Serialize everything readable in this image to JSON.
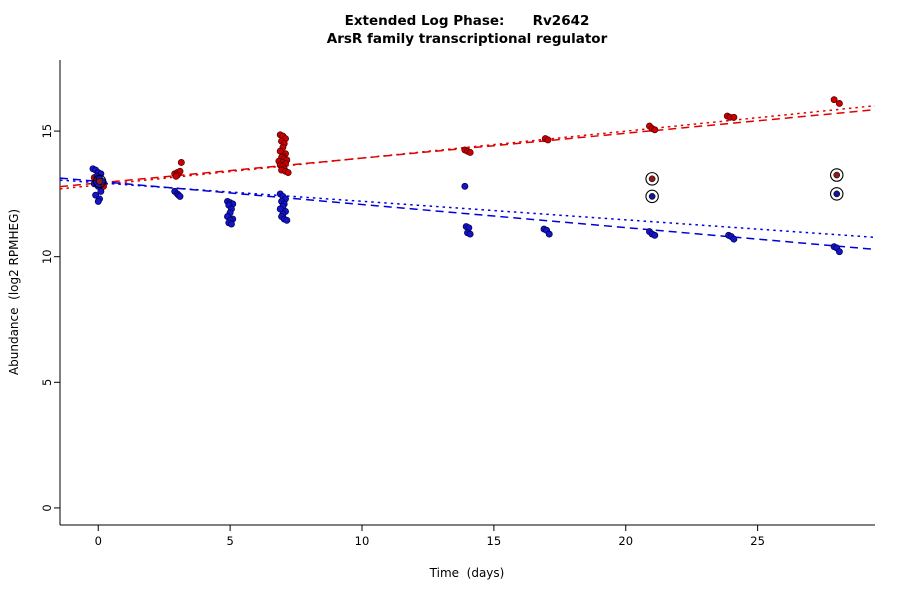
{
  "chart_data": {
    "type": "scatter",
    "title": "Extended Log Phase:      Rv2642",
    "subtitle": "ArsR family transcriptional regulator",
    "xlabel": "Time  (days)",
    "ylabel": "Abundance  (log2 RPMHEG)",
    "xlim": [
      -1.45,
      29.45
    ],
    "ylim": [
      -0.68,
      17.83
    ],
    "xticks": [
      0,
      5,
      10,
      15,
      20,
      25
    ],
    "yticks": [
      0,
      5,
      10,
      15
    ],
    "grid": false,
    "background": "#ffffff",
    "series": [
      {
        "name": "red",
        "color": "#cc0000",
        "edge": "#4d0000",
        "points": [
          [
            -0.1,
            13.05
          ],
          [
            0.0,
            13.0
          ],
          [
            0.1,
            12.95
          ],
          [
            -0.05,
            12.9
          ],
          [
            0.05,
            13.1
          ],
          [
            0.15,
            12.85
          ],
          [
            -0.15,
            13.15
          ],
          [
            0.2,
            12.8
          ],
          [
            2.9,
            13.3
          ],
          [
            3.0,
            13.35
          ],
          [
            3.1,
            13.4
          ],
          [
            3.0,
            13.25
          ],
          [
            3.15,
            13.75
          ],
          [
            2.95,
            13.2
          ],
          [
            6.9,
            14.85
          ],
          [
            7.0,
            14.8
          ],
          [
            7.1,
            14.7
          ],
          [
            6.95,
            14.6
          ],
          [
            7.05,
            14.5
          ],
          [
            7.0,
            14.35
          ],
          [
            6.9,
            14.2
          ],
          [
            7.1,
            14.1
          ],
          [
            7.0,
            14.0
          ],
          [
            6.95,
            13.95
          ],
          [
            7.05,
            13.9
          ],
          [
            7.15,
            13.85
          ],
          [
            6.85,
            13.8
          ],
          [
            7.0,
            13.75
          ],
          [
            7.1,
            13.7
          ],
          [
            6.9,
            13.65
          ],
          [
            7.0,
            13.6
          ],
          [
            7.05,
            13.5
          ],
          [
            6.95,
            13.45
          ],
          [
            7.1,
            13.4
          ],
          [
            7.2,
            13.35
          ],
          [
            13.9,
            14.25
          ],
          [
            14.0,
            14.2
          ],
          [
            14.1,
            14.15
          ],
          [
            16.95,
            14.7
          ],
          [
            17.05,
            14.65
          ],
          [
            20.9,
            15.2
          ],
          [
            21.0,
            15.1
          ],
          [
            21.1,
            15.05
          ],
          [
            23.85,
            15.6
          ],
          [
            23.95,
            15.55
          ],
          [
            24.1,
            15.55
          ],
          [
            27.9,
            16.25
          ],
          [
            28.1,
            16.1
          ]
        ]
      },
      {
        "name": "blue",
        "color": "#1414c8",
        "edge": "#00004d",
        "points": [
          [
            -0.2,
            13.5
          ],
          [
            -0.1,
            13.45
          ],
          [
            0.0,
            13.35
          ],
          [
            0.1,
            13.3
          ],
          [
            -0.05,
            13.2
          ],
          [
            0.05,
            13.1
          ],
          [
            0.15,
            13.0
          ],
          [
            -0.15,
            12.9
          ],
          [
            0.0,
            12.8
          ],
          [
            0.1,
            12.6
          ],
          [
            -0.1,
            12.45
          ],
          [
            0.05,
            12.3
          ],
          [
            0.0,
            12.2
          ],
          [
            2.9,
            12.6
          ],
          [
            3.0,
            12.5
          ],
          [
            3.05,
            12.45
          ],
          [
            3.1,
            12.4
          ],
          [
            4.9,
            12.2
          ],
          [
            5.0,
            12.15
          ],
          [
            5.1,
            12.1
          ],
          [
            4.95,
            12.05
          ],
          [
            5.05,
            11.9
          ],
          [
            5.0,
            11.75
          ],
          [
            4.9,
            11.6
          ],
          [
            5.1,
            11.5
          ],
          [
            5.0,
            11.45
          ],
          [
            4.95,
            11.35
          ],
          [
            5.05,
            11.3
          ],
          [
            6.9,
            12.5
          ],
          [
            7.0,
            12.4
          ],
          [
            7.1,
            12.3
          ],
          [
            6.95,
            12.2
          ],
          [
            7.05,
            12.1
          ],
          [
            7.0,
            12.0
          ],
          [
            6.9,
            11.9
          ],
          [
            7.1,
            11.8
          ],
          [
            7.0,
            11.7
          ],
          [
            6.95,
            11.6
          ],
          [
            7.05,
            11.5
          ],
          [
            7.15,
            11.45
          ],
          [
            13.9,
            12.8
          ],
          [
            13.95,
            11.2
          ],
          [
            14.05,
            11.15
          ],
          [
            14.0,
            10.95
          ],
          [
            14.1,
            10.9
          ],
          [
            16.9,
            11.1
          ],
          [
            17.0,
            11.05
          ],
          [
            17.1,
            10.9
          ],
          [
            20.9,
            11.0
          ],
          [
            21.0,
            10.9
          ],
          [
            21.1,
            10.85
          ],
          [
            23.9,
            10.85
          ],
          [
            24.0,
            10.8
          ],
          [
            24.1,
            10.7
          ],
          [
            27.9,
            10.4
          ],
          [
            28.0,
            10.35
          ],
          [
            28.1,
            10.2
          ]
        ]
      }
    ],
    "outliers": {
      "ring_color": "#000000",
      "points": [
        {
          "x": 0.05,
          "y": 13.0,
          "color": "#8b1a1a"
        },
        {
          "x": 21.0,
          "y": 13.1,
          "color": "#8b1a1a"
        },
        {
          "x": 21.0,
          "y": 12.4,
          "color": "#14148b"
        },
        {
          "x": 28.0,
          "y": 13.25,
          "color": "#8b1a1a"
        },
        {
          "x": 28.0,
          "y": 12.5,
          "color": "#14148b"
        }
      ]
    },
    "trendlines": [
      {
        "name": "red-dashed",
        "color": "#e00000",
        "dash": "dashed",
        "x": [
          -1.45,
          29.45
        ],
        "y": [
          12.79,
          15.85
        ]
      },
      {
        "name": "red-dotted",
        "color": "#e00000",
        "dash": "dotted",
        "x": [
          -1.45,
          29.45
        ],
        "y": [
          12.7,
          16.01
        ]
      },
      {
        "name": "blue-dashed",
        "color": "#0000dd",
        "dash": "dashed",
        "x": [
          -1.45,
          29.45
        ],
        "y": [
          13.13,
          10.29
        ]
      },
      {
        "name": "blue-dotted",
        "color": "#0000dd",
        "dash": "dotted",
        "x": [
          -1.45,
          29.45
        ],
        "y": [
          13.05,
          10.77
        ]
      }
    ]
  }
}
